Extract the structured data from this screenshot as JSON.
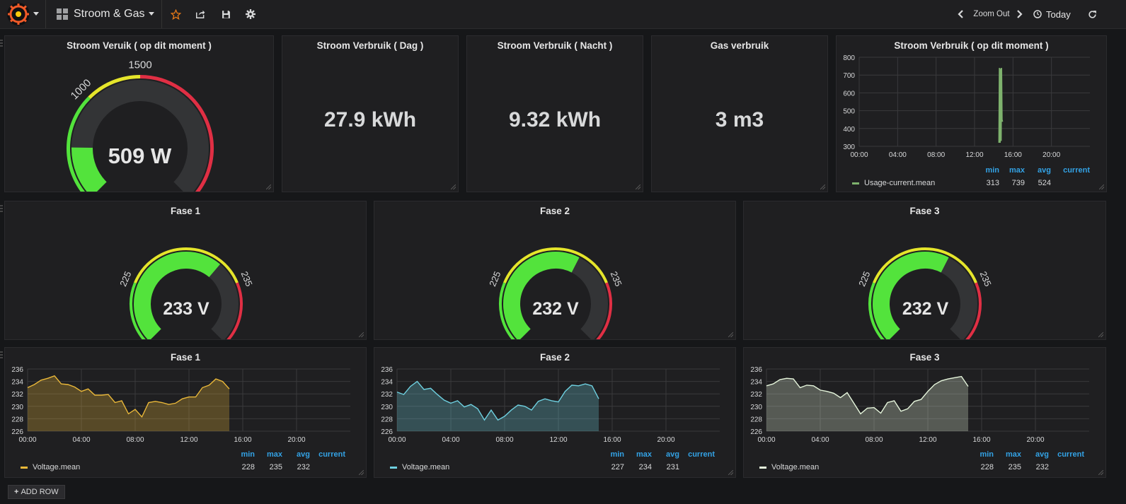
{
  "toolbar": {
    "dashboard_title": "Stroom & Gas",
    "zoom_out": "Zoom Out",
    "time_range": "Today"
  },
  "panels": {
    "stroom_now": {
      "title": "Stroom Veruik ( op dit moment )",
      "value": "509 W",
      "min": 0,
      "max": 3000,
      "current": 509,
      "ticks": [
        "0",
        "1000",
        "1500",
        "3000"
      ],
      "thresholds": [
        1000,
        1500
      ]
    },
    "dag": {
      "title": "Stroom Verbruik ( Dag )",
      "value": "27.9 kWh"
    },
    "nacht": {
      "title": "Stroom Verbruik ( Nacht )",
      "value": "9.32 kWh"
    },
    "gas": {
      "title": "Gas verbruik",
      "value": "3 m3"
    },
    "usage_graph": {
      "title": "Stroom Verbruik ( op dit moment )",
      "legend_series": "Usage-current.mean",
      "stats": {
        "min_label": "min",
        "max_label": "max",
        "avg_label": "avg",
        "current_label": "current",
        "min": "313",
        "max": "739",
        "avg": "524",
        "current": ""
      }
    },
    "fase1_gauge": {
      "title": "Fase 1",
      "value": "233 V",
      "min": 220,
      "max": 240,
      "current": 233,
      "ticks": [
        "220",
        "225",
        "235",
        "240"
      ]
    },
    "fase2_gauge": {
      "title": "Fase 2",
      "value": "232 V",
      "min": 220,
      "max": 240,
      "current": 232,
      "ticks": [
        "220",
        "225",
        "235",
        "240"
      ]
    },
    "fase3_gauge": {
      "title": "Fase 3",
      "value": "232 V",
      "min": 220,
      "max": 240,
      "current": 232,
      "ticks": [
        "220",
        "225",
        "235",
        "240"
      ]
    },
    "fase1_graph": {
      "title": "Fase 1",
      "legend_series": "Voltage.mean",
      "stats": {
        "min_label": "min",
        "max_label": "max",
        "avg_label": "avg",
        "current_label": "current",
        "min": "228",
        "max": "235",
        "avg": "232",
        "current": ""
      }
    },
    "fase2_graph": {
      "title": "Fase 2",
      "legend_series": "Voltage.mean",
      "stats": {
        "min_label": "min",
        "max_label": "max",
        "avg_label": "avg",
        "current_label": "current",
        "min": "227",
        "max": "234",
        "avg": "231",
        "current": ""
      }
    },
    "fase3_graph": {
      "title": "Fase 3",
      "legend_series": "Voltage.mean",
      "stats": {
        "min_label": "min",
        "max_label": "max",
        "avg_label": "avg",
        "current_label": "current",
        "min": "228",
        "max": "235",
        "avg": "232",
        "current": ""
      }
    }
  },
  "add_row": "ADD ROW",
  "colors": {
    "accent": "#eb7b18",
    "green": "#299c46",
    "gauge_green": "#53e33c",
    "yellow": "#e5e52b",
    "red": "#e02f44",
    "link": "#33a2e5",
    "yellow_series": "#eab839",
    "cyan_series": "#6ed0e0",
    "white_series": "#e6f6dc",
    "usage_series": "#7eb26d"
  },
  "chart_data": [
    {
      "type": "line",
      "panel": "usage_graph",
      "series": [
        {
          "name": "Usage-current.mean",
          "color": "#7eb26d",
          "points": [
            [
              14.55,
              320
            ],
            [
              14.6,
              740
            ],
            [
              14.65,
              320
            ],
            [
              14.7,
              735
            ],
            [
              14.75,
              330
            ],
            [
              14.8,
              740
            ],
            [
              14.85,
              450
            ],
            [
              14.9,
              438
            ]
          ]
        }
      ],
      "xticks": [
        "00:00",
        "04:00",
        "08:00",
        "12:00",
        "16:00",
        "20:00"
      ],
      "xlim": [
        0,
        24
      ],
      "ylim": [
        300,
        800
      ],
      "yticks": [
        300,
        400,
        500,
        600,
        700,
        800
      ],
      "grid": true,
      "legend": "bottom"
    },
    {
      "type": "area",
      "panel": "fase1_graph",
      "series": [
        {
          "name": "Voltage.mean",
          "color": "#eab839",
          "points": [
            [
              0,
              233
            ],
            [
              0.5,
              233.5
            ],
            [
              1,
              234.2
            ],
            [
              1.5,
              234.5
            ],
            [
              2,
              234.9
            ],
            [
              2.5,
              233.6
            ],
            [
              3,
              233.5
            ],
            [
              3.5,
              233.1
            ],
            [
              4,
              232.4
            ],
            [
              4.5,
              232.8
            ],
            [
              5,
              231.8
            ],
            [
              5.5,
              231.8
            ],
            [
              6,
              231.9
            ],
            [
              6.5,
              230.6
            ],
            [
              7,
              230.9
            ],
            [
              7.5,
              228.8
            ],
            [
              8,
              229.5
            ],
            [
              8.5,
              228.3
            ],
            [
              9,
              230.6
            ],
            [
              9.5,
              230.8
            ],
            [
              10,
              230.6
            ],
            [
              10.5,
              230.3
            ],
            [
              11,
              230.5
            ],
            [
              11.5,
              231.2
            ],
            [
              12,
              231.5
            ],
            [
              12.5,
              231.5
            ],
            [
              13,
              233
            ],
            [
              13.5,
              233.4
            ],
            [
              14,
              234.4
            ],
            [
              14.5,
              234
            ],
            [
              15,
              232.8
            ]
          ]
        }
      ],
      "xticks": [
        "00:00",
        "04:00",
        "08:00",
        "12:00",
        "16:00",
        "20:00"
      ],
      "xlim": [
        0,
        24
      ],
      "ylim": [
        226,
        236
      ],
      "yticks": [
        226,
        228,
        230,
        232,
        234,
        236
      ],
      "grid": true,
      "legend": "bottom"
    },
    {
      "type": "area",
      "panel": "fase2_graph",
      "series": [
        {
          "name": "Voltage.mean",
          "color": "#6ed0e0",
          "points": [
            [
              0,
              232.3
            ],
            [
              0.5,
              231.9
            ],
            [
              1,
              233.2
            ],
            [
              1.5,
              234
            ],
            [
              2,
              232.7
            ],
            [
              2.5,
              232.9
            ],
            [
              3,
              231.9
            ],
            [
              3.5,
              231
            ],
            [
              4,
              230.5
            ],
            [
              4.5,
              230.9
            ],
            [
              5,
              229.9
            ],
            [
              5.5,
              230.3
            ],
            [
              6,
              229.6
            ],
            [
              6.5,
              227.8
            ],
            [
              7,
              229.4
            ],
            [
              7.5,
              227.8
            ],
            [
              8,
              228.4
            ],
            [
              8.5,
              229.4
            ],
            [
              9,
              230.2
            ],
            [
              9.5,
              230
            ],
            [
              10,
              229.4
            ],
            [
              10.5,
              230.8
            ],
            [
              11,
              231.2
            ],
            [
              11.5,
              230.9
            ],
            [
              12,
              230.7
            ],
            [
              12.5,
              232.4
            ],
            [
              13,
              233.4
            ],
            [
              13.5,
              233.3
            ],
            [
              14,
              233.6
            ],
            [
              14.5,
              233.3
            ],
            [
              15,
              231.2
            ]
          ]
        }
      ],
      "xticks": [
        "00:00",
        "04:00",
        "08:00",
        "12:00",
        "16:00",
        "20:00"
      ],
      "xlim": [
        0,
        24
      ],
      "ylim": [
        226,
        236
      ],
      "yticks": [
        226,
        228,
        230,
        232,
        234,
        236
      ],
      "grid": true,
      "legend": "bottom"
    },
    {
      "type": "area",
      "panel": "fase3_graph",
      "series": [
        {
          "name": "Voltage.mean",
          "color": "#e6f6dc",
          "points": [
            [
              0,
              233.3
            ],
            [
              0.5,
              233.6
            ],
            [
              1,
              234.3
            ],
            [
              1.5,
              234.5
            ],
            [
              2,
              234.4
            ],
            [
              2.5,
              233
            ],
            [
              3,
              233.4
            ],
            [
              3.5,
              233.3
            ],
            [
              4,
              232.6
            ],
            [
              4.5,
              232.4
            ],
            [
              5,
              232.1
            ],
            [
              5.5,
              231.4
            ],
            [
              6,
              232.2
            ],
            [
              6.5,
              230.5
            ],
            [
              7,
              228.8
            ],
            [
              7.5,
              229.7
            ],
            [
              8,
              229.8
            ],
            [
              8.5,
              228.9
            ],
            [
              9,
              230.6
            ],
            [
              9.5,
              230.9
            ],
            [
              10,
              229.2
            ],
            [
              10.5,
              229.6
            ],
            [
              11,
              230.8
            ],
            [
              11.5,
              231.1
            ],
            [
              12,
              232.4
            ],
            [
              12.5,
              233.5
            ],
            [
              13,
              234.1
            ],
            [
              13.5,
              234.4
            ],
            [
              14,
              234.6
            ],
            [
              14.5,
              234.8
            ],
            [
              15,
              233.2
            ]
          ]
        }
      ],
      "xticks": [
        "00:00",
        "04:00",
        "08:00",
        "12:00",
        "16:00",
        "20:00"
      ],
      "xlim": [
        0,
        24
      ],
      "ylim": [
        226,
        236
      ],
      "yticks": [
        226,
        228,
        230,
        232,
        234,
        236
      ],
      "grid": true,
      "legend": "bottom"
    }
  ]
}
